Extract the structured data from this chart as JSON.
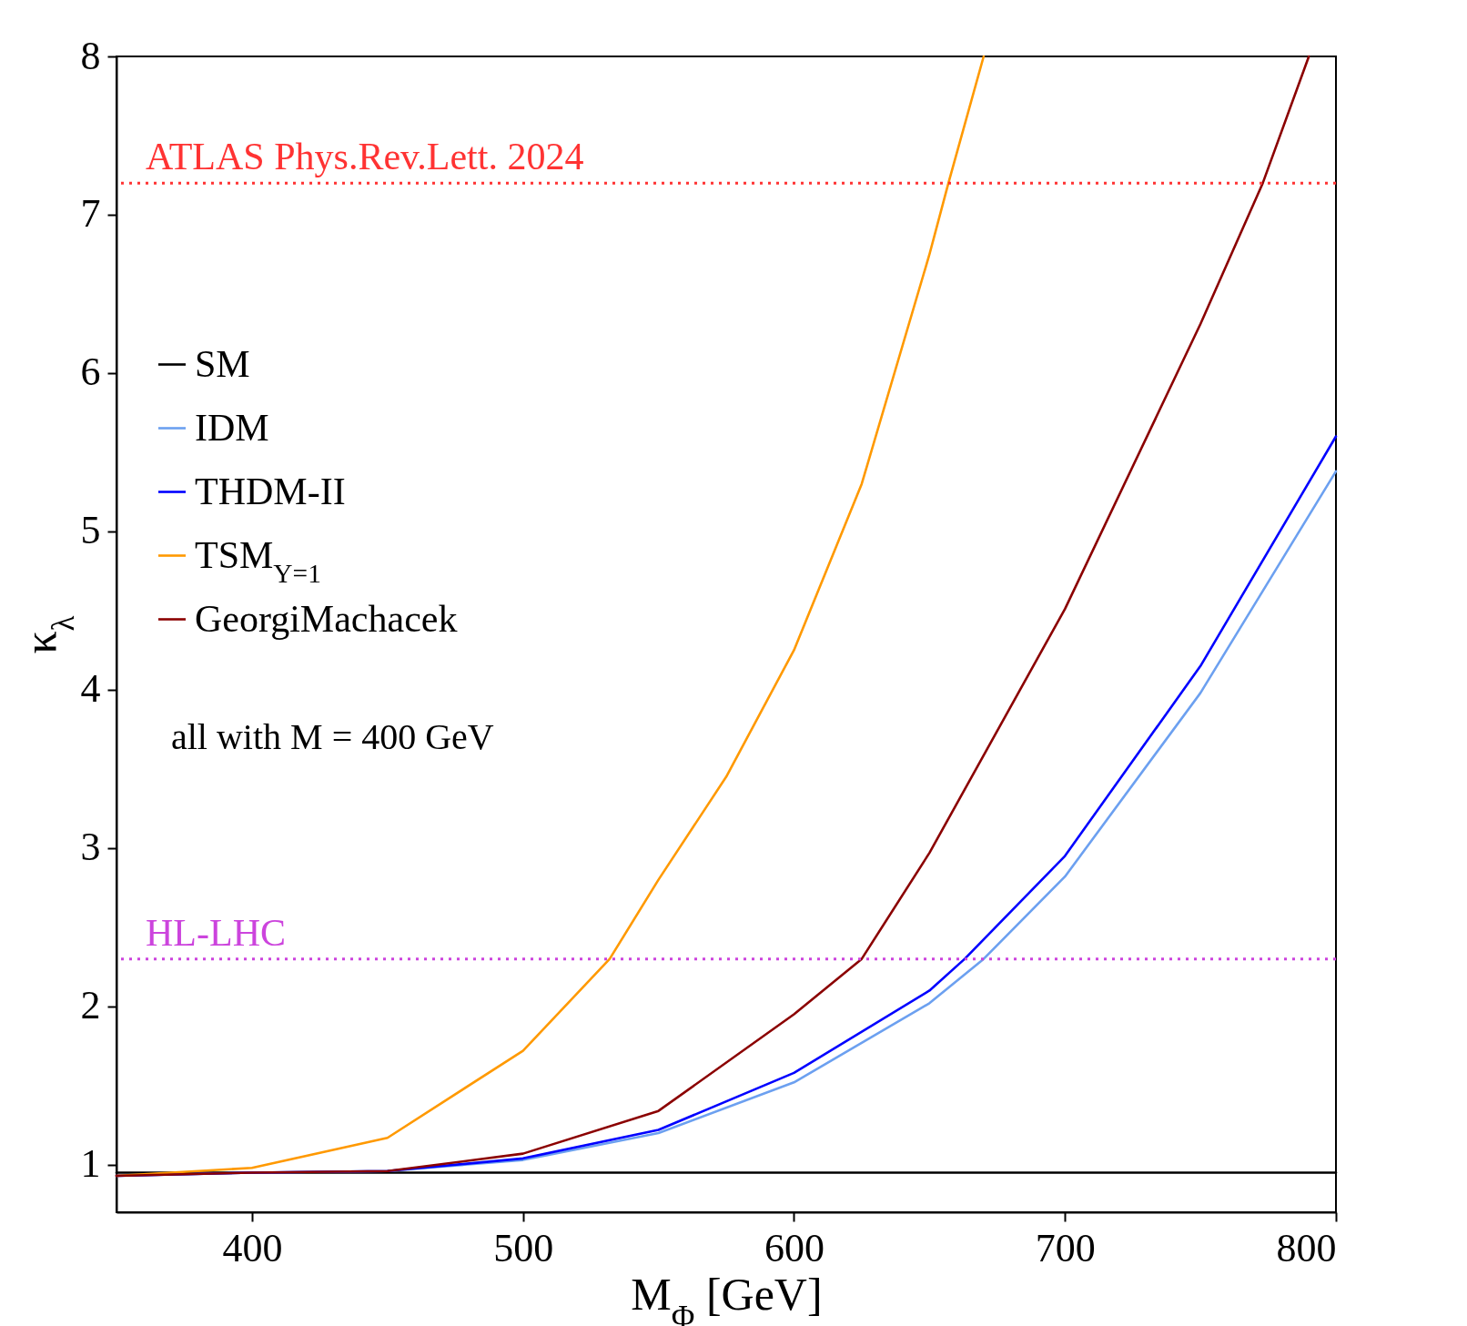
{
  "chart_data": {
    "type": "line",
    "xlabel": "M$_{Φ}$ [GeV]",
    "ylabel": "κ$_{λ}$",
    "xlim": [
      350,
      800
    ],
    "ylim": [
      0.7,
      8
    ],
    "xticks": [
      400,
      500,
      600,
      700,
      800
    ],
    "yticks": [
      1,
      2,
      3,
      4,
      5,
      6,
      7,
      8
    ],
    "grid": false,
    "legend": "left",
    "line_style": "solid",
    "marker": "none",
    "series": [
      {
        "name": "SM",
        "color": "#000000",
        "x": [
          350,
          800
        ],
        "values": [
          0.95,
          0.95
        ]
      },
      {
        "name": "IDM",
        "color": "#6ca0f0",
        "x": [
          350,
          400,
          450,
          500,
          550,
          600,
          650,
          670,
          700,
          750,
          800
        ],
        "values": [
          0.93,
          0.95,
          0.96,
          1.03,
          1.2,
          1.52,
          2.02,
          2.3,
          2.82,
          3.98,
          5.38
        ]
      },
      {
        "name": "THDM-II",
        "color": "#0000ff",
        "x": [
          350,
          400,
          450,
          500,
          550,
          600,
          650,
          663,
          700,
          750,
          800
        ],
        "values": [
          0.93,
          0.95,
          0.96,
          1.04,
          1.22,
          1.58,
          2.1,
          2.3,
          2.95,
          4.15,
          5.6
        ]
      },
      {
        "name": "TSM$_{Y=1}$",
        "color": "#ff9900",
        "x": [
          350,
          400,
          450,
          500,
          532,
          550,
          575,
          600,
          625,
          650,
          657,
          670
        ],
        "values": [
          0.93,
          0.98,
          1.17,
          1.72,
          2.3,
          2.8,
          3.45,
          4.25,
          5.3,
          6.75,
          7.2,
          8
        ]
      },
      {
        "name": "GeorgiMachacek",
        "color": "#8b0000",
        "x": [
          350,
          400,
          450,
          500,
          550,
          600,
          625,
          650,
          700,
          750,
          773,
          790
        ],
        "values": [
          0.93,
          0.95,
          0.96,
          1.07,
          1.34,
          1.95,
          2.3,
          2.97,
          4.51,
          6.31,
          7.2,
          8
        ]
      }
    ],
    "ref_lines": [
      {
        "axis": "y",
        "value": 7.2,
        "label": "ATLAS Phys.Rev.Lett. 2024",
        "color": "#ff3333",
        "line_style": "dotted"
      },
      {
        "axis": "y",
        "value": 2.3,
        "label": "HL-LHC",
        "color": "#cc44dd",
        "line_style": "dotted"
      }
    ],
    "annotations": [
      "all with M = 400 GeV"
    ]
  }
}
